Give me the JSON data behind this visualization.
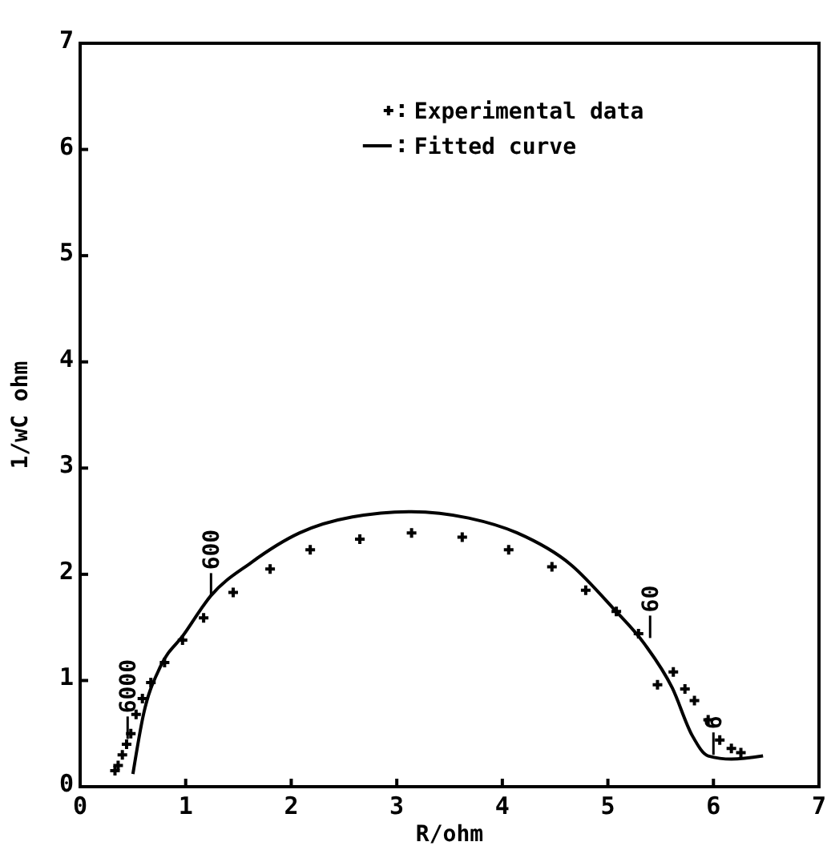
{
  "chart_data": {
    "type": "scatter",
    "xlabel": "R/ohm",
    "ylabel": "1/wC ohm",
    "xlim": [
      0,
      7
    ],
    "ylim": [
      0,
      7
    ],
    "xticks": [
      0,
      1,
      2,
      3,
      4,
      5,
      6,
      7
    ],
    "yticks": [
      0,
      1,
      2,
      3,
      4,
      5,
      6,
      7
    ],
    "grid": false,
    "legend": "top right",
    "series": [
      {
        "name": "Experimental data",
        "marker": "cross",
        "color": "#000000",
        "x": [
          0.33,
          0.36,
          0.4,
          0.44,
          0.48,
          0.53,
          0.59,
          0.67,
          0.8,
          0.97,
          1.17,
          1.45,
          1.8,
          2.18,
          2.65,
          3.14,
          3.62,
          4.06,
          4.47,
          4.79,
          5.08,
          5.29,
          5.47,
          5.62,
          5.73,
          5.82,
          5.95,
          6.06,
          6.17,
          6.26
        ],
        "values": [
          0.15,
          0.2,
          0.3,
          0.4,
          0.5,
          0.68,
          0.83,
          0.98,
          1.17,
          1.38,
          1.59,
          1.83,
          2.05,
          2.23,
          2.33,
          2.39,
          2.35,
          2.23,
          2.07,
          1.85,
          1.65,
          1.44,
          0.96,
          1.08,
          0.92,
          0.81,
          0.63,
          0.44,
          0.36,
          0.32
        ]
      },
      {
        "name": "Fitted curve",
        "type": "line",
        "line_style": "solid",
        "color": "#000000",
        "x": [
          0.5,
          0.6,
          0.76,
          0.98,
          1.24,
          1.62,
          2.08,
          2.58,
          3.14,
          3.68,
          4.14,
          4.65,
          5.05,
          5.35,
          5.61,
          5.8,
          5.95,
          6.17,
          6.47
        ],
        "values": [
          0.12,
          0.68,
          1.13,
          1.43,
          1.8,
          2.11,
          2.39,
          2.54,
          2.59,
          2.53,
          2.39,
          2.09,
          1.68,
          1.34,
          0.93,
          0.48,
          0.29,
          0.26,
          0.29
        ]
      }
    ],
    "annotations": [
      {
        "text": "6000",
        "x": 0.45,
        "y": 0.45
      },
      {
        "text": "600",
        "x": 1.24,
        "y": 1.8
      },
      {
        "text": "60",
        "x": 5.4,
        "y": 1.4
      },
      {
        "text": "6",
        "x": 6.0,
        "y": 0.3
      }
    ]
  }
}
